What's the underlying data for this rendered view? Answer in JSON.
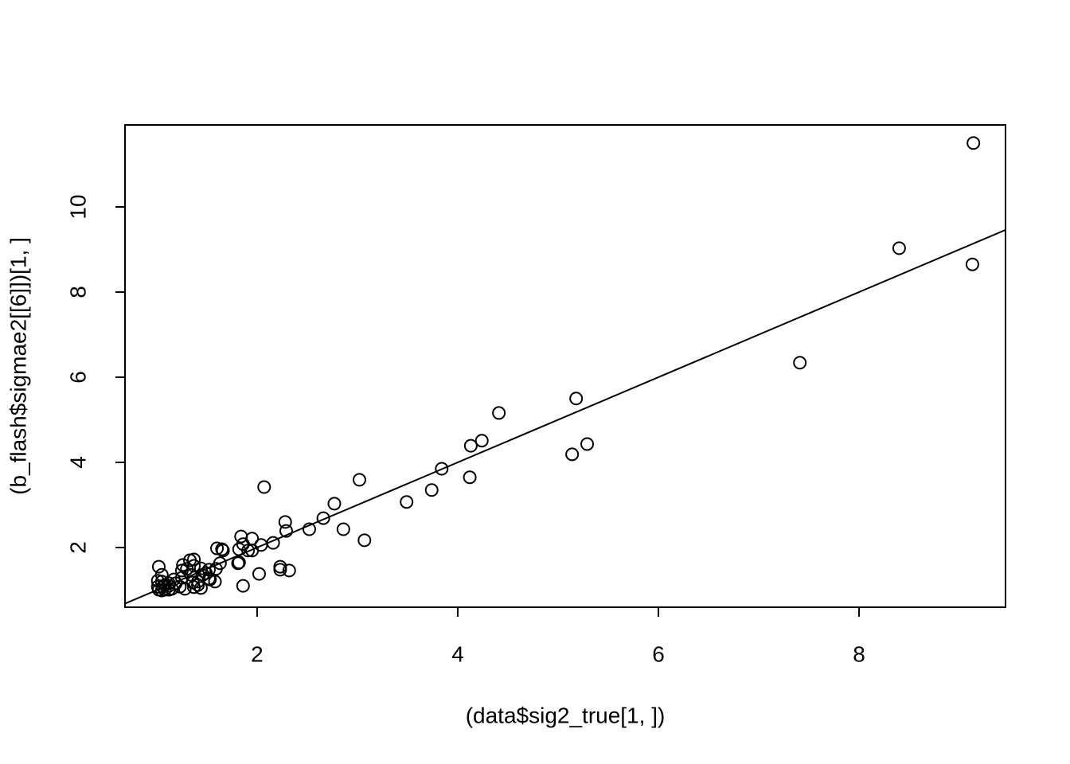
{
  "chart_data": {
    "type": "scatter",
    "xlabel": "(data$sig2_true[1, ])",
    "ylabel": "(b_flash$sigmae2[[6]])[1, ]",
    "xlim": [
      0.683,
      9.46
    ],
    "ylim": [
      0.598,
      11.925
    ],
    "xticks": [
      2,
      4,
      6,
      8
    ],
    "yticks": [
      2,
      4,
      6,
      8,
      10
    ],
    "color": "#000000",
    "abline": {
      "intercept": 0,
      "slope": 1
    },
    "x": [
      9.14,
      8.4,
      9.13,
      7.41,
      5.18,
      4.41,
      4.24,
      4.13,
      5.14,
      5.29,
      4.12,
      3.84,
      3.74,
      3.49,
      3.02,
      3.07,
      2.86,
      2.77,
      2.66,
      2.52,
      2.07,
      2.28,
      2.29,
      2.16,
      2.04,
      1.95,
      1.95,
      1.91,
      1.84,
      1.86,
      1.82,
      1.66,
      1.65,
      1.6,
      1.63,
      1.59,
      1.82,
      1.81,
      2.02,
      1.86,
      2.23,
      2.23,
      2.32,
      1.52,
      1.58,
      1.52,
      1.44,
      1.46,
      1.41,
      1.44,
      1.36,
      1.37,
      1.37,
      1.33,
      1.3,
      1.34,
      1.37,
      1.28,
      1.26,
      1.25,
      1.25,
      1.17,
      1.12,
      1.08,
      1.05,
      1.02,
      1.01,
      1.01,
      1.02,
      1.05,
      1.08,
      1.12,
      1.15,
      1.12,
      1.06,
      1.05,
      1.19,
      1.23,
      1.49,
      1.53,
      1.41
    ],
    "values": [
      11.5,
      9.03,
      8.65,
      6.34,
      5.5,
      5.16,
      4.51,
      4.39,
      4.19,
      4.43,
      3.65,
      3.85,
      3.35,
      3.07,
      3.59,
      2.17,
      2.43,
      3.03,
      2.69,
      2.43,
      3.42,
      2.6,
      2.39,
      2.11,
      2.06,
      2.21,
      1.93,
      1.93,
      2.26,
      2.08,
      1.96,
      1.93,
      1.96,
      1.98,
      1.63,
      1.5,
      1.65,
      1.63,
      1.38,
      1.1,
      1.55,
      1.48,
      1.46,
      1.48,
      1.2,
      1.27,
      1.51,
      1.36,
      1.2,
      1.05,
      1.18,
      1.57,
      1.72,
      1.7,
      1.5,
      1.36,
      1.07,
      1.03,
      1.59,
      1.46,
      1.29,
      1.25,
      1.16,
      1.12,
      1.36,
      1.55,
      1.22,
      1.08,
      1.01,
      0.99,
      1.01,
      1.01,
      1.03,
      1.1,
      1.08,
      1.2,
      1.16,
      1.08,
      1.4,
      1.25,
      1.12
    ]
  }
}
